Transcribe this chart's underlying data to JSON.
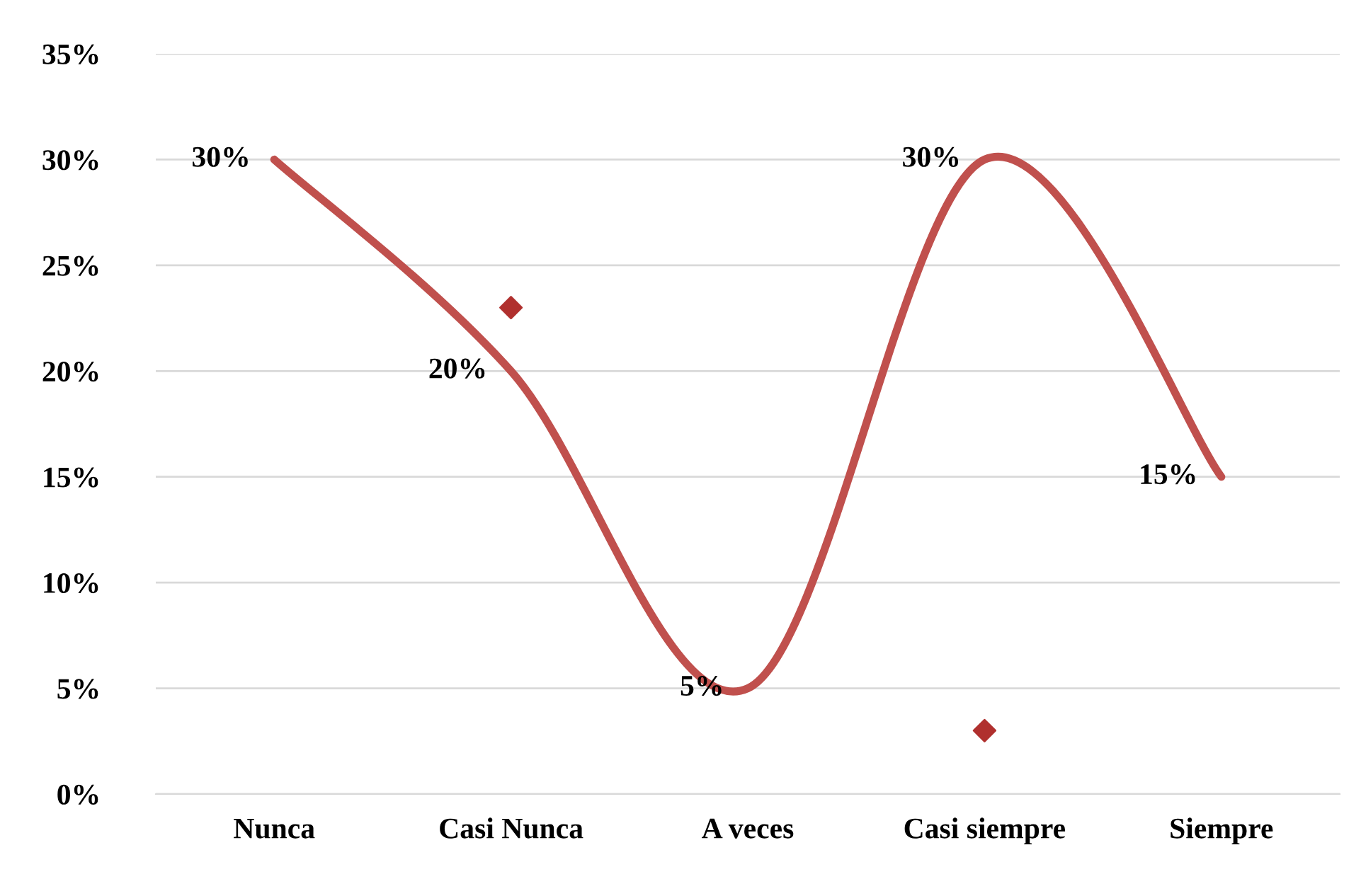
{
  "chart_data": {
    "type": "line",
    "categories": [
      "Nunca",
      "Casi Nunca",
      "A veces",
      "Casi siempre",
      "Siempre"
    ],
    "series": [
      {
        "color": "#c0504d",
        "values": [
          30,
          20,
          5,
          30,
          15
        ],
        "value_labels": [
          "30%",
          "20%",
          "5%",
          "30%",
          "15%"
        ]
      },
      {
        "type": "scatter",
        "color": "#b0302e",
        "marker": "diamond",
        "values": [
          null,
          23,
          null,
          3,
          null
        ]
      }
    ],
    "ylim": [
      0,
      35
    ],
    "yticks": [
      {
        "value": 0,
        "label": "0%"
      },
      {
        "value": 5,
        "label": "5%"
      },
      {
        "value": 10,
        "label": "10%"
      },
      {
        "value": 15,
        "label": "15%"
      },
      {
        "value": 20,
        "label": "20%"
      },
      {
        "value": 25,
        "label": "25%"
      },
      {
        "value": 30,
        "label": "30%"
      },
      {
        "value": 35,
        "label": "35%"
      }
    ],
    "grid": "y",
    "legend": false,
    "marker": "none"
  }
}
